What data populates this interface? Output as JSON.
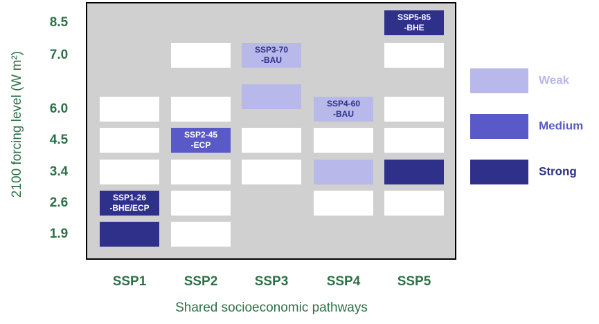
{
  "y_label": "2100 forcing level (W m²)",
  "x_label": "Shared socioeconomic pathways",
  "rows": [
    "8.5",
    "7.0",
    null,
    "6.0",
    "4.5",
    "3.4",
    "2.6",
    "1.9"
  ],
  "columns": [
    {
      "label": "SSP1",
      "cells": [
        {
          "row": 3,
          "level": null
        },
        {
          "row": 4,
          "level": null
        },
        {
          "row": 5,
          "level": null
        },
        {
          "row": 6,
          "level": 2,
          "lines": [
            "SSP1-26",
            "-BHE/ECP"
          ]
        },
        {
          "row": 7,
          "level": 2
        }
      ]
    },
    {
      "label": "SSP2",
      "cells": [
        {
          "row": 1,
          "level": null
        },
        {
          "row": 3,
          "level": null
        },
        {
          "row": 4,
          "level": 1,
          "lines": [
            "SSP2-45",
            "-ECP"
          ]
        },
        {
          "row": 5,
          "level": null
        },
        {
          "row": 6,
          "level": null
        },
        {
          "row": 7,
          "level": null
        }
      ]
    },
    {
      "label": "SSP3",
      "cells": [
        {
          "row": 1,
          "level": 0,
          "lines": [
            "SSP3-70",
            "-BAU"
          ]
        },
        {
          "row": 2,
          "level": 0
        },
        {
          "row": 4,
          "level": null
        },
        {
          "row": 5,
          "level": null
        }
      ]
    },
    {
      "label": "SSP4",
      "cells": [
        {
          "row": 3,
          "level": 0,
          "lines": [
            "SSP4-60",
            "-BAU"
          ]
        },
        {
          "row": 4,
          "level": null
        },
        {
          "row": 5,
          "level": 0
        },
        {
          "row": 6,
          "level": null
        }
      ]
    },
    {
      "label": "SSP5",
      "cells": [
        {
          "row": 0,
          "level": 2,
          "lines": [
            "SSP5-85",
            "-BHE"
          ]
        },
        {
          "row": 1,
          "level": null
        },
        {
          "row": 3,
          "level": null
        },
        {
          "row": 4,
          "level": null
        },
        {
          "row": 5,
          "level": 2
        },
        {
          "row": 6,
          "level": null
        }
      ]
    }
  ],
  "legend": [
    {
      "label": "Weak",
      "color": "#b8b8ea"
    },
    {
      "label": "Medium",
      "color": "#5959c8"
    },
    {
      "label": "Strong",
      "color": "#2e3089"
    }
  ]
}
